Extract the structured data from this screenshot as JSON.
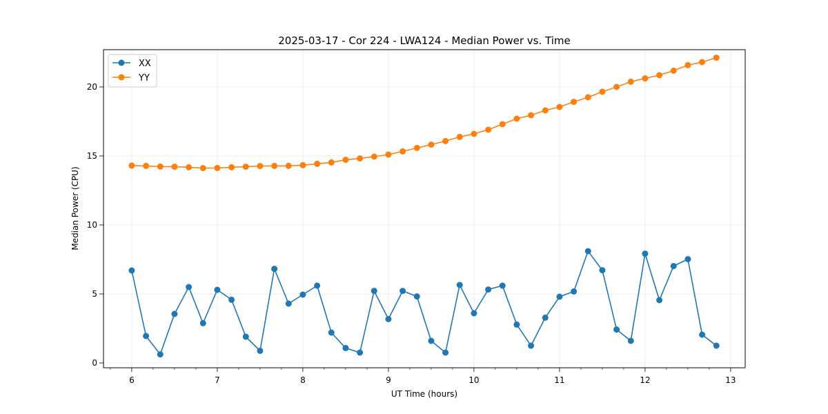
{
  "chart_data": {
    "type": "line",
    "title": "2025-03-17 - Cor 224 - LWA124 - Median Power vs. Time",
    "xlabel": "UT Time (hours)",
    "ylabel": "Median Power (CPU)",
    "xlim": [
      5.67,
      13.17
    ],
    "ylim": [
      -0.35,
      22.7
    ],
    "xticks": [
      6,
      7,
      8,
      9,
      10,
      11,
      12,
      13
    ],
    "xticks_minor_step": 0.25,
    "yticks": [
      0,
      5,
      10,
      15,
      20
    ],
    "grid": true,
    "legend_position": "top-left",
    "x": [
      6.0,
      6.1667,
      6.3333,
      6.5,
      6.6667,
      6.8333,
      7.0,
      7.1667,
      7.3333,
      7.5,
      7.6667,
      7.8333,
      8.0,
      8.1667,
      8.3333,
      8.5,
      8.6667,
      8.8333,
      9.0,
      9.1667,
      9.3333,
      9.5,
      9.6667,
      9.8333,
      10.0,
      10.1667,
      10.3333,
      10.5,
      10.6667,
      10.8333,
      11.0,
      11.1667,
      11.3333,
      11.5,
      11.6667,
      11.8333,
      12.0,
      12.1667,
      12.3333,
      12.5,
      12.6667,
      12.8333
    ],
    "series": [
      {
        "name": "XX",
        "color": "#1f77b4",
        "values": [
          6.7,
          1.95,
          0.62,
          3.55,
          5.5,
          2.88,
          5.3,
          4.58,
          1.9,
          0.88,
          6.82,
          4.3,
          4.95,
          5.6,
          2.2,
          1.08,
          0.75,
          5.22,
          3.18,
          5.22,
          4.82,
          1.6,
          0.75,
          5.65,
          3.6,
          5.32,
          5.6,
          2.78,
          1.25,
          3.28,
          4.8,
          5.18,
          8.1,
          6.72,
          2.42,
          1.6,
          7.92,
          4.55,
          7.02,
          7.52,
          2.05,
          1.25
        ]
      },
      {
        "name": "YY",
        "color": "#ff7f0e",
        "values": [
          14.3,
          14.28,
          14.23,
          14.22,
          14.18,
          14.12,
          14.13,
          14.18,
          14.22,
          14.27,
          14.28,
          14.28,
          14.33,
          14.43,
          14.53,
          14.72,
          14.82,
          14.95,
          15.1,
          15.33,
          15.58,
          15.82,
          16.08,
          16.38,
          16.6,
          16.9,
          17.3,
          17.7,
          17.95,
          18.3,
          18.55,
          18.92,
          19.25,
          19.65,
          20.0,
          20.38,
          20.62,
          20.85,
          21.18,
          21.58,
          21.8,
          22.12
        ]
      }
    ]
  }
}
